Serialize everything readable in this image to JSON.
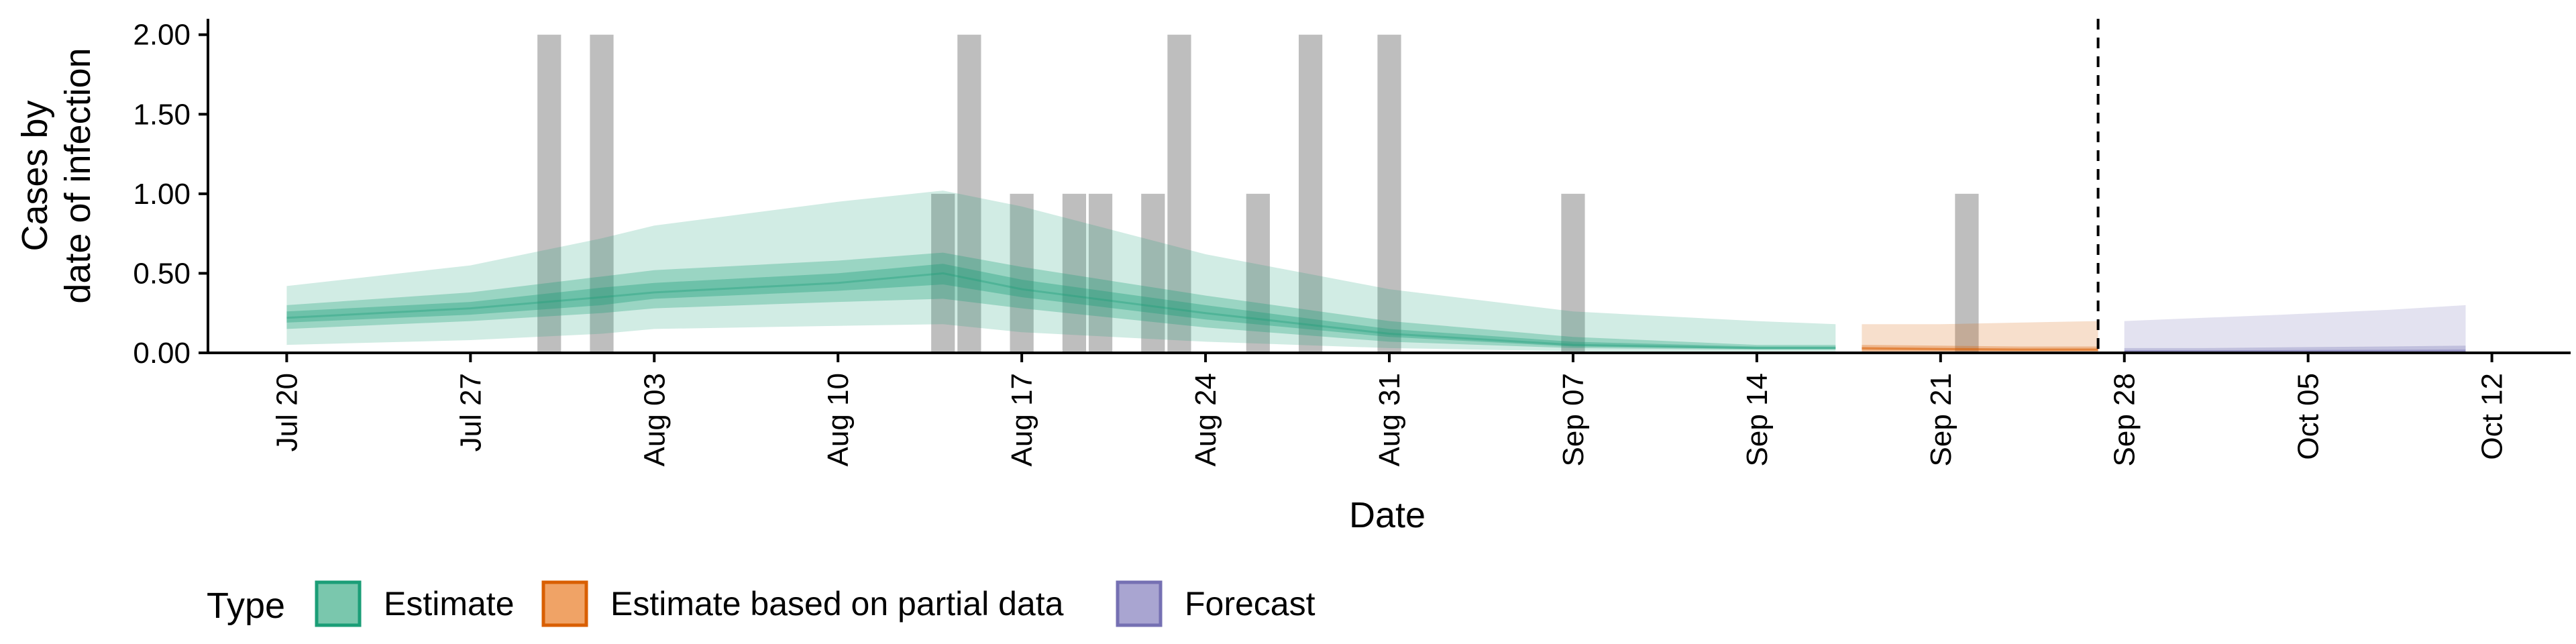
{
  "chart_data": {
    "type": "area",
    "xlabel": "Date",
    "ylabel_lines": [
      "Cases by",
      "date of infection"
    ],
    "ylim": [
      0,
      2.1
    ],
    "yticks": [
      0,
      0.5,
      1,
      1.5,
      2
    ],
    "ytick_labels": [
      "0.00",
      "0.50",
      "1.00",
      "1.50",
      "2.00"
    ],
    "xlim": [
      "2020-07-17",
      "2020-10-15"
    ],
    "xticks": [
      "2020-07-20",
      "2020-07-27",
      "2020-08-03",
      "2020-08-10",
      "2020-08-17",
      "2020-08-24",
      "2020-08-31",
      "2020-09-07",
      "2020-09-14",
      "2020-09-21",
      "2020-09-28",
      "2020-10-05",
      "2020-10-12"
    ],
    "xtick_labels": [
      "Jul 20",
      "Jul 27",
      "Aug 03",
      "Aug 10",
      "Aug 17",
      "Aug 24",
      "Aug 31",
      "Sep 07",
      "Sep 14",
      "Sep 21",
      "Sep 28",
      "Oct 05",
      "Oct 12"
    ],
    "vline": "2020-09-27",
    "grid": false,
    "legend": {
      "title": "Type",
      "position": "bottom",
      "items": [
        {
          "label": "Estimate",
          "fill": "#7ac7ad",
          "stroke": "#1b9e77"
        },
        {
          "label": "Estimate based on partial data",
          "fill": "#f0a366",
          "stroke": "#d95f02"
        },
        {
          "label": "Forecast",
          "fill": "#a9a5d1",
          "stroke": "#7570b3"
        }
      ]
    },
    "reported_cases": [
      {
        "date": "2020-07-30",
        "value": 2
      },
      {
        "date": "2020-08-01",
        "value": 2
      },
      {
        "date": "2020-08-14",
        "value": 1
      },
      {
        "date": "2020-08-15",
        "value": 2
      },
      {
        "date": "2020-08-17",
        "value": 1
      },
      {
        "date": "2020-08-19",
        "value": 1
      },
      {
        "date": "2020-08-20",
        "value": 1
      },
      {
        "date": "2020-08-22",
        "value": 1
      },
      {
        "date": "2020-08-23",
        "value": 2
      },
      {
        "date": "2020-08-26",
        "value": 1
      },
      {
        "date": "2020-08-28",
        "value": 2
      },
      {
        "date": "2020-08-31",
        "value": 2
      },
      {
        "date": "2020-09-07",
        "value": 1
      },
      {
        "date": "2020-09-22",
        "value": 1
      }
    ],
    "series": [
      {
        "name": "Estimate",
        "color": "#1b9e77",
        "x": [
          "2020-07-20",
          "2020-07-27",
          "2020-08-01",
          "2020-08-03",
          "2020-08-10",
          "2020-08-14",
          "2020-08-17",
          "2020-08-24",
          "2020-08-31",
          "2020-09-07",
          "2020-09-14",
          "2020-09-17"
        ],
        "median": [
          0.22,
          0.28,
          0.35,
          0.38,
          0.44,
          0.5,
          0.4,
          0.25,
          0.12,
          0.05,
          0.03,
          0.03
        ],
        "lower90": [
          0.05,
          0.08,
          0.12,
          0.15,
          0.17,
          0.18,
          0.13,
          0.07,
          0.03,
          0.01,
          0.01,
          0.01
        ],
        "upper90": [
          0.42,
          0.55,
          0.72,
          0.8,
          0.95,
          1.02,
          0.92,
          0.62,
          0.4,
          0.26,
          0.2,
          0.18
        ],
        "lower50": [
          0.15,
          0.2,
          0.25,
          0.28,
          0.32,
          0.34,
          0.28,
          0.16,
          0.07,
          0.03,
          0.02,
          0.02
        ],
        "upper50": [
          0.3,
          0.38,
          0.48,
          0.52,
          0.58,
          0.63,
          0.54,
          0.36,
          0.2,
          0.1,
          0.05,
          0.05
        ],
        "lower20": [
          0.19,
          0.24,
          0.3,
          0.34,
          0.39,
          0.43,
          0.35,
          0.21,
          0.1,
          0.04,
          0.025,
          0.025
        ],
        "upper20": [
          0.26,
          0.32,
          0.41,
          0.44,
          0.5,
          0.56,
          0.46,
          0.3,
          0.15,
          0.07,
          0.04,
          0.04
        ]
      },
      {
        "name": "Estimate based on partial data",
        "color": "#d95f02",
        "x": [
          "2020-09-18",
          "2020-09-21",
          "2020-09-24",
          "2020-09-27"
        ],
        "median": [
          0.03,
          0.025,
          0.02,
          0.02
        ],
        "lower90": [
          0.0,
          0.0,
          0.0,
          0.0
        ],
        "upper90": [
          0.18,
          0.18,
          0.19,
          0.2
        ],
        "lower50": [
          0.01,
          0.01,
          0.01,
          0.01
        ],
        "upper50": [
          0.05,
          0.045,
          0.04,
          0.04
        ],
        "lower20": [
          0.02,
          0.015,
          0.012,
          0.012
        ],
        "upper20": [
          0.035,
          0.03,
          0.028,
          0.028
        ]
      },
      {
        "name": "Forecast",
        "color": "#7570b3",
        "x": [
          "2020-09-28",
          "2020-10-01",
          "2020-10-04",
          "2020-10-08",
          "2020-10-11"
        ],
        "median": [
          0.01,
          0.01,
          0.01,
          0.01,
          0.01
        ],
        "lower90": [
          0.0,
          0.0,
          0.0,
          0.0,
          0.0
        ],
        "upper90": [
          0.2,
          0.22,
          0.24,
          0.27,
          0.3
        ],
        "lower50": [
          0.0,
          0.0,
          0.0,
          0.0,
          0.0
        ],
        "upper50": [
          0.03,
          0.03,
          0.035,
          0.04,
          0.045
        ],
        "lower20": [
          0.005,
          0.005,
          0.005,
          0.005,
          0.005
        ],
        "upper20": [
          0.015,
          0.015,
          0.018,
          0.02,
          0.022
        ]
      }
    ]
  }
}
